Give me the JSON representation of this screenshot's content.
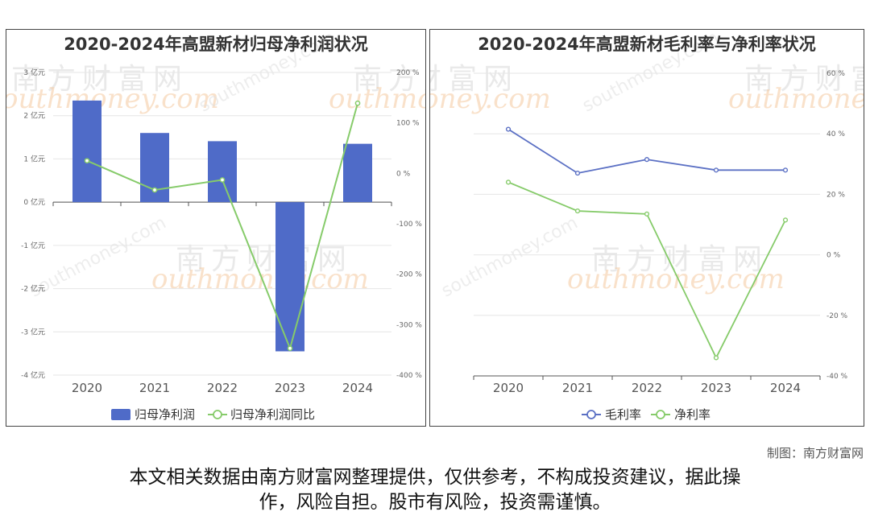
{
  "colors": {
    "bar": "#4f6bc8",
    "green_line": "#86cb6a",
    "blue_line": "#5b70c4",
    "grid": "#e6e6e6",
    "axis": "#555555"
  },
  "watermark": {
    "cn": "南方财富网",
    "en": "outhmoney.com",
    "en_small": "southmoney.com"
  },
  "credit": "制图：南方财富网",
  "footnote_line1": "本文相关数据由南方财富网整理提供，仅供参考，不构成投资建议，据此操",
  "footnote_line2": "作，风险自担。股市有风险，投资需谨慎。",
  "chart_data": [
    {
      "type": "bar",
      "title": "2020-2024年高盟新材归母净利润状况",
      "categories": [
        "2020",
        "2021",
        "2022",
        "2023",
        "2024"
      ],
      "series": [
        {
          "name": "归母净利润",
          "type": "bar",
          "axis": "left",
          "values": [
            2.35,
            1.6,
            1.41,
            -3.45,
            1.35
          ]
        },
        {
          "name": "归母净利润同比",
          "type": "line",
          "axis": "right",
          "values": [
            25,
            -33,
            -13,
            -347,
            139
          ]
        }
      ],
      "y_left": {
        "min": -4,
        "max": 3,
        "step": 1,
        "unit": "亿元",
        "ticks": [
          "3 亿元",
          "2 亿元",
          "1 亿元",
          "0 亿元",
          "-1 亿元",
          "-2 亿元",
          "-3 亿元",
          "-4 亿元"
        ]
      },
      "y_right": {
        "min": -400,
        "max": 200,
        "step": 100,
        "unit": "%",
        "ticks": [
          "200 %",
          "100 %",
          "0 %",
          "-100 %",
          "-200 %",
          "-300 %",
          "-400 %"
        ]
      },
      "legend_position": "bottom",
      "grid": true
    },
    {
      "type": "line",
      "title": "2020-2024年高盟新材毛利率与净利率状况",
      "categories": [
        "2020",
        "2021",
        "2022",
        "2023",
        "2024"
      ],
      "series": [
        {
          "name": "毛利率",
          "values": [
            41.5,
            27,
            31.5,
            28,
            28
          ]
        },
        {
          "name": "净利率",
          "values": [
            24,
            14.5,
            13.5,
            -34,
            11.5
          ]
        }
      ],
      "y_right": {
        "min": -40,
        "max": 60,
        "step": 20,
        "unit": "%",
        "ticks": [
          "60 %",
          "40 %",
          "20 %",
          "0 %",
          "-20 %",
          "-40 %"
        ]
      },
      "legend_position": "bottom",
      "grid": true
    }
  ]
}
